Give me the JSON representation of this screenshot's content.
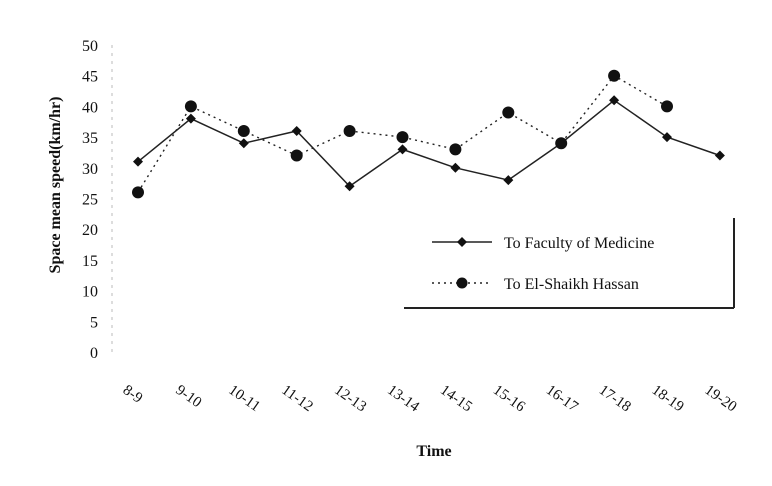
{
  "chart_data": {
    "type": "line",
    "title": "",
    "xlabel": "Time",
    "ylabel": "Space mean speed(km/hr)",
    "categories": [
      "8-9",
      "9-10",
      "10-11",
      "11-12",
      "12-13",
      "13-14",
      "14-15",
      "15-16",
      "16-17",
      "17-18",
      "18-19",
      "19-20"
    ],
    "ylim": [
      0,
      50
    ],
    "yticks": [
      0,
      5,
      10,
      15,
      20,
      25,
      30,
      35,
      40,
      45,
      50
    ],
    "grid": false,
    "legend_position": "right",
    "series": [
      {
        "name": "To Faculty of Medicine",
        "style": "solid",
        "marker": "diamond",
        "values": [
          31,
          38,
          34,
          36,
          27,
          33,
          30,
          28,
          34,
          41,
          35,
          32
        ]
      },
      {
        "name": "To El-Shaikh Hassan",
        "style": "dotted",
        "marker": "circle",
        "values": [
          26,
          40,
          36,
          32,
          36,
          35,
          33,
          39,
          34,
          45,
          40,
          null
        ]
      }
    ]
  }
}
